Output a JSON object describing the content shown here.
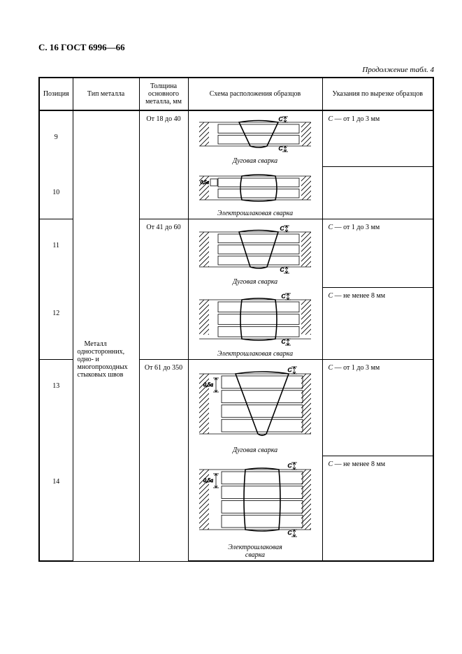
{
  "page_header": "С. 16 ГОСТ 6996—66",
  "table_caption": "Продолжение табл. 4",
  "columns": {
    "position": "Позиция",
    "metal_type": "Тип металла",
    "thickness": "Толщина основного металла, мм",
    "diagram": "Схема расположения образцов",
    "notes": "Указания по вырезке образцов"
  },
  "metal_type_text": "Металл односторонних, одно- и многопроходных стыковых швов",
  "diagram_labels": {
    "arc": "Дуговая сварка",
    "electroslag": "Электрошлаковая сварка",
    "electroslag_2line_a": "Электрошлаковая",
    "electroslag_2line_b": "сварка"
  },
  "dim_labels": {
    "c": "C",
    "half_a": "0,5a"
  },
  "groups": [
    {
      "thickness": "От 18 до 40",
      "rows": [
        {
          "position": "9",
          "note_prefix": "С",
          "note_rest": " — от 1 до 3 мм",
          "diagram": "arc_shallow"
        },
        {
          "position": "10",
          "note_prefix": "",
          "note_rest": "",
          "diagram": "eslag_shallow"
        }
      ]
    },
    {
      "thickness": "От 41 до 60",
      "rows": [
        {
          "position": "11",
          "note_prefix": "С",
          "note_rest": " — от 1 до 3 мм",
          "diagram": "arc_mid"
        },
        {
          "position": "12",
          "note_prefix": "С",
          "note_rest": " — не менее 8 мм",
          "diagram": "eslag_mid"
        }
      ]
    },
    {
      "thickness": "От 61 до 350",
      "rows": [
        {
          "position": "13",
          "note_prefix": "С",
          "note_rest": " — от 1 до 3 мм",
          "diagram": "arc_deep"
        },
        {
          "position": "14",
          "note_prefix": "С",
          "note_rest": " — не менее 8 мм",
          "diagram": "eslag_deep"
        }
      ]
    }
  ],
  "svg_style": {
    "stroke": "#000000",
    "fill": "none",
    "stroke_width_thin": 0.8,
    "stroke_width_bold": 1.6,
    "hatch_spacing": 7
  }
}
